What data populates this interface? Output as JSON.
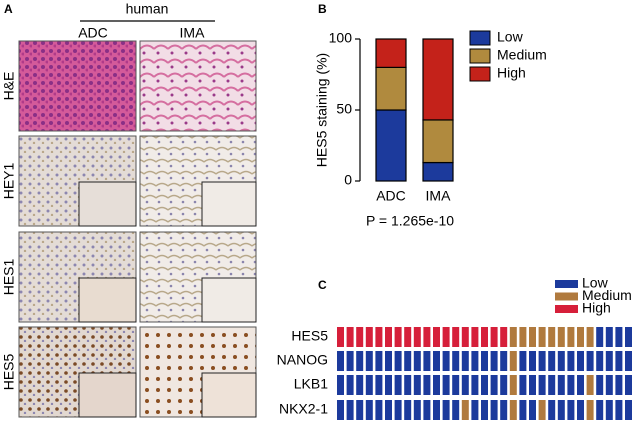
{
  "panel_a": {
    "label": "A",
    "header": "human",
    "columns": [
      "ADC",
      "IMA"
    ],
    "rows": [
      "H&E",
      "HEY1",
      "HES1",
      "HES5"
    ]
  },
  "chart_data": [
    {
      "type": "bar",
      "panel_label": "B",
      "stacked": true,
      "y_label": "HES5 staining (%)",
      "annotation": "P = 1.265e-10",
      "categories": [
        "ADC",
        "IMA"
      ],
      "series": [
        {
          "name": "Low",
          "color": "#1c3a9c",
          "values": [
            50,
            13
          ]
        },
        {
          "name": "Medium",
          "color": "#b08a3e",
          "values": [
            30,
            30
          ]
        },
        {
          "name": "High",
          "color": "#c4221a",
          "values": [
            20,
            57
          ]
        }
      ],
      "ylim": [
        0,
        100
      ],
      "yticks": [
        0,
        50,
        100
      ],
      "legend": "upper right"
    },
    {
      "type": "heatmap",
      "panel_label": "C",
      "legend": [
        {
          "name": "Low",
          "color": "#1c3a9c"
        },
        {
          "name": "Medium",
          "color": "#b07a3e"
        },
        {
          "name": "High",
          "color": "#d61f3a"
        }
      ],
      "rows": [
        {
          "name": "HES5",
          "values": [
            2,
            2,
            2,
            2,
            2,
            2,
            2,
            2,
            2,
            2,
            2,
            2,
            2,
            2,
            2,
            2,
            2,
            2,
            1,
            1,
            1,
            1,
            1,
            1,
            1,
            1,
            1,
            0,
            0,
            0,
            0
          ]
        },
        {
          "name": "NANOG",
          "values": [
            0,
            0,
            0,
            0,
            0,
            0,
            0,
            0,
            0,
            0,
            0,
            0,
            0,
            0,
            0,
            0,
            0,
            0,
            1,
            0,
            0,
            0,
            0,
            0,
            0,
            0,
            0,
            0,
            0,
            0,
            0
          ]
        },
        {
          "name": "LKB1",
          "values": [
            0,
            0,
            0,
            0,
            0,
            0,
            0,
            0,
            0,
            0,
            0,
            0,
            0,
            0,
            0,
            0,
            0,
            0,
            1,
            0,
            0,
            0,
            0,
            0,
            0,
            0,
            1,
            0,
            0,
            0,
            0
          ]
        },
        {
          "name": "NKX2-1",
          "values": [
            0,
            0,
            0,
            0,
            0,
            0,
            0,
            0,
            0,
            0,
            0,
            0,
            0,
            1,
            0,
            0,
            0,
            0,
            1,
            0,
            0,
            1,
            0,
            0,
            0,
            0,
            1,
            0,
            0,
            0,
            0
          ]
        }
      ]
    }
  ]
}
